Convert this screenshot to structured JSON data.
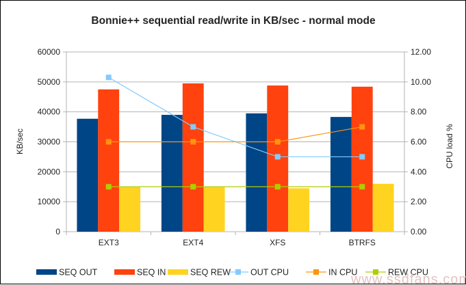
{
  "chart_data": {
    "type": "bar",
    "title": "Bonnie++ sequential read/write in KB/sec - normal mode",
    "xlabel": "",
    "ylabel": "KB/sec",
    "y2label": "CPU load %",
    "categories": [
      "EXT3",
      "EXT4",
      "XFS",
      "BTRFS"
    ],
    "ylim": [
      0,
      60000
    ],
    "y2lim": [
      0,
      12
    ],
    "yticks": [
      "0",
      "10000",
      "20000",
      "30000",
      "40000",
      "50000",
      "60000"
    ],
    "y2ticks": [
      "0.00",
      "2.00",
      "4.00",
      "6.00",
      "8.00",
      "10.00",
      "12.00"
    ],
    "grid": true,
    "legend_position": "bottom",
    "series": [
      {
        "name": "SEQ OUT",
        "type": "bar",
        "axis": "left",
        "color": "#004586",
        "values": [
          37700,
          39000,
          39500,
          38300
        ]
      },
      {
        "name": "SEQ IN",
        "type": "bar",
        "axis": "left",
        "color": "#ff420e",
        "values": [
          47500,
          49500,
          48800,
          48400
        ]
      },
      {
        "name": "SEQ REW",
        "type": "bar",
        "axis": "left",
        "color": "#ffd320",
        "values": [
          15000,
          15000,
          14500,
          16000
        ]
      },
      {
        "name": "OUT CPU",
        "type": "line",
        "axis": "right",
        "color": "#83caff",
        "values": [
          10.3,
          7.0,
          5.0,
          5.0
        ]
      },
      {
        "name": "IN CPU",
        "type": "line",
        "axis": "right",
        "color": "#ff950e",
        "values": [
          6.0,
          6.0,
          6.0,
          7.0
        ]
      },
      {
        "name": "REW CPU",
        "type": "line",
        "axis": "right",
        "color": "#aecf00",
        "values": [
          3.0,
          3.0,
          3.0,
          3.0
        ]
      }
    ]
  },
  "watermark": "www.ssdfans.com"
}
